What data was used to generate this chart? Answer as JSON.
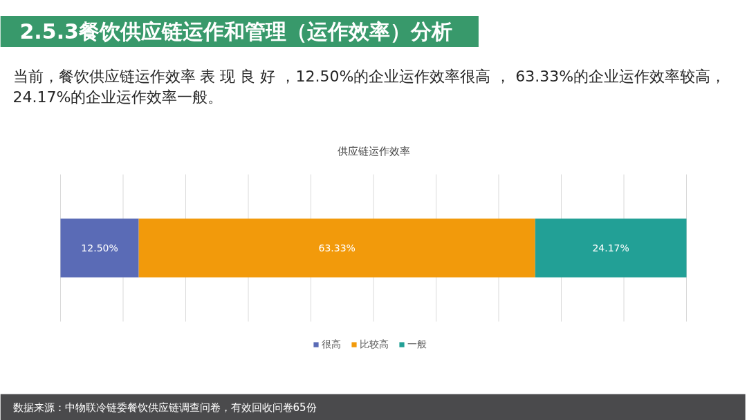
{
  "chart_data": {
    "type": "bar",
    "title": "供应链运作效率",
    "orientation": "horizontal",
    "stacked": true,
    "categories": [
      null
    ],
    "series": [
      {
        "name": "很高",
        "color": "#5a6bb6",
        "values": [
          12.5
        ],
        "value_labels": [
          "12.50%"
        ]
      },
      {
        "name": "比较高",
        "color": "#f29a0b",
        "values": [
          63.33
        ],
        "value_labels": [
          "63.33%"
        ]
      },
      {
        "name": "一般",
        "color": "#22a096",
        "values": [
          24.17
        ],
        "value_labels": [
          "24.17%"
        ]
      }
    ],
    "xlim": [
      0,
      100
    ],
    "xticks": [
      {
        "value": 0,
        "label": null
      },
      {
        "value": 10,
        "label": null
      },
      {
        "value": 20,
        "label": null
      },
      {
        "value": 30,
        "label": null
      },
      {
        "value": 40,
        "label": null
      },
      {
        "value": 50,
        "label": null
      },
      {
        "value": 60,
        "label": null
      },
      {
        "value": 70,
        "label": null
      },
      {
        "value": 80,
        "label": null
      },
      {
        "value": 90,
        "label": null
      },
      {
        "value": 100,
        "label": null
      }
    ],
    "grid": "x",
    "tick_labels": false,
    "legend": "bottom",
    "annotations": [
      "2.5.3餐饮供应链运作和管理（运作效率）分析",
      "当前，餐饮供应链运作效率 表 现 良 好 ，12.50%的企业运作效率很高 ， 63.33%的企业运作效率较高，24.17%的企业运作效率一般。",
      "数据来源：中物联冷链委餐饮供应链调查问卷，有效回收问卷65份"
    ]
  }
}
